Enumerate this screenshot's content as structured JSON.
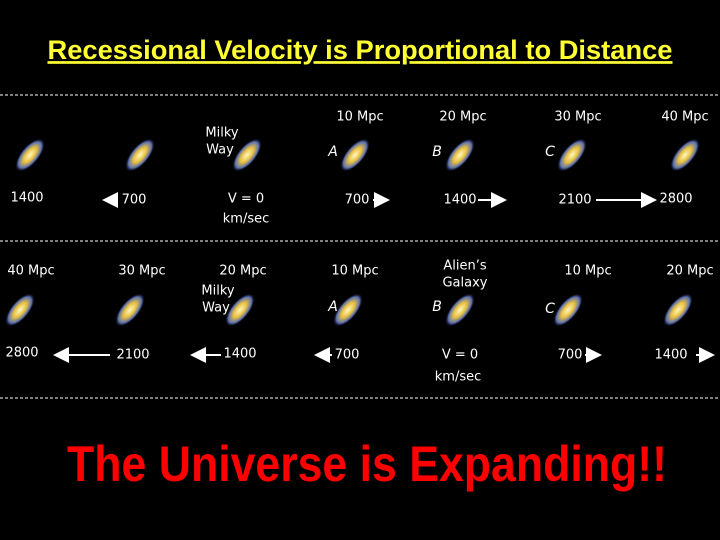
{
  "title": "Recessional Velocity is Proportional to Distance",
  "rows": [
    {
      "distances": [
        "10 Mpc",
        "20 Mpc",
        "30 Mpc",
        "40 Mpc"
      ],
      "observer": [
        "Milky",
        "Way"
      ],
      "galaxy_labels": [
        "A",
        "B",
        "C"
      ],
      "velocities": [
        "1400",
        "700",
        "700",
        "1400",
        "2100",
        "2800"
      ],
      "rest_velocity": [
        "V = 0",
        "km/sec"
      ]
    },
    {
      "distances": [
        "40 Mpc",
        "30 Mpc",
        "20 Mpc",
        "10 Mpc",
        "10 Mpc",
        "20 Mpc"
      ],
      "observer": [
        "Alien’s",
        "Galaxy"
      ],
      "milky_way": [
        "Milky",
        "Way"
      ],
      "galaxy_labels": [
        "A",
        "B",
        "C"
      ],
      "velocities": [
        "2800",
        "2100",
        "1400",
        "700",
        "700",
        "1400"
      ],
      "rest_velocity": [
        "V = 0",
        "km/sec"
      ]
    }
  ],
  "conclusion": "The Universe is Expanding!!"
}
